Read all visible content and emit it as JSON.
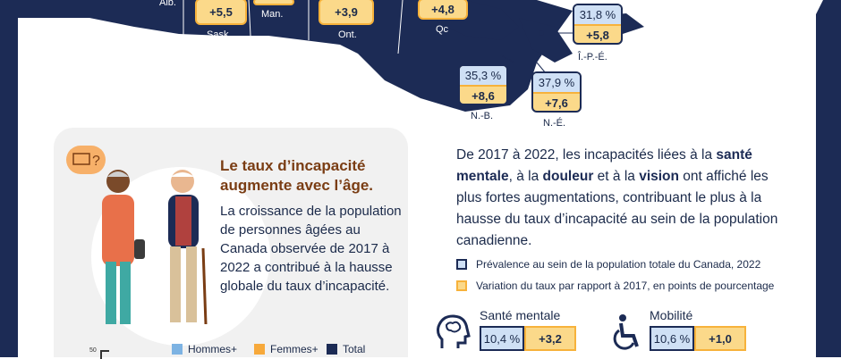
{
  "map": {
    "provinces": [
      {
        "abbr": "Alb.",
        "change": ""
      },
      {
        "abbr": "Sask.",
        "change": "+5,5"
      },
      {
        "abbr": "Man.",
        "change": ""
      },
      {
        "abbr": "Ont.",
        "change": "+3,9"
      },
      {
        "abbr": "Qc",
        "change": "+4,8"
      },
      {
        "abbr": "Î.-P.-É.",
        "prevalence": "31,8 %",
        "change": "+5,8"
      },
      {
        "abbr": "N.-B.",
        "prevalence": "35,3 %",
        "change": "+8,6"
      },
      {
        "abbr": "N.-É.",
        "prevalence": "37,9 %",
        "change": "+7,6"
      }
    ]
  },
  "age_card": {
    "title": "Le taux d’incapacité augmente avec l’âge.",
    "text": "La croissance de la population de personnes âgées au Canada observée de 2017 à 2022 a contribué à la hausse globale du taux d’incapacité.",
    "legend": [
      {
        "label": "Hommes+",
        "color": "#7db3e3"
      },
      {
        "label": "Femmes+",
        "color": "#f7a93b"
      },
      {
        "label": "Total",
        "color": "#1c2b55"
      }
    ],
    "axis_tick": "50"
  },
  "summary": {
    "intro": "De 2017 à 2022, les incapacités liées à la ",
    "kw1": "santé mentale",
    "mid1": ", à la ",
    "kw2": "douleur",
    "mid2": " et à la ",
    "kw3": "vision",
    "rest": " ont affiché les plus fortes augmentations, contribuant le plus à la hausse du taux d’incapacité au sein de la population canadienne."
  },
  "key": {
    "prevalence": "Prévalence au sein de la population totale du Canada, 2022",
    "change": "Variation du taux par rapport à 2017, en points de pourcentage"
  },
  "stats": [
    {
      "label": "Santé mentale",
      "icon": "brain-head-icon",
      "prevalence": "10,4 %",
      "change": "+3,2"
    },
    {
      "label": "Mobilité",
      "icon": "wheelchair-icon",
      "prevalence": "10,6 %",
      "change": "+1,0"
    }
  ]
}
